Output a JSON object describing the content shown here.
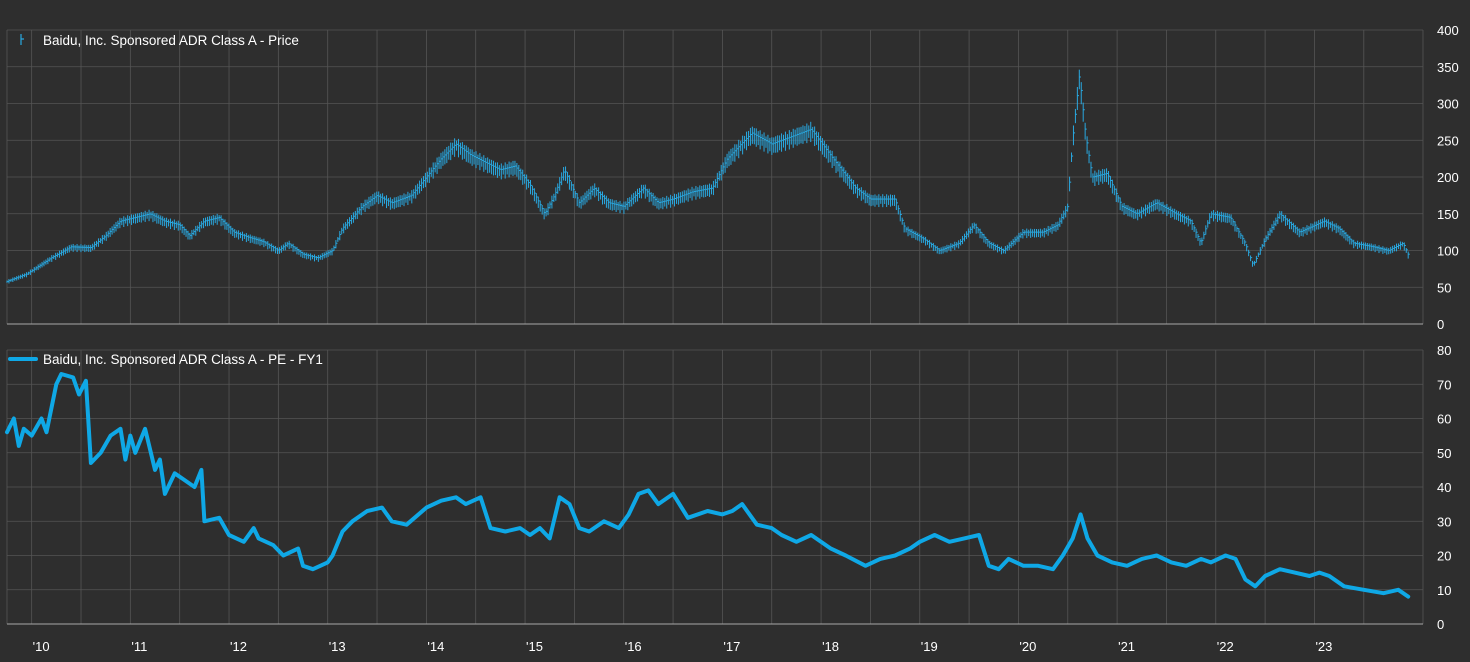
{
  "colors": {
    "background": "#2e2e2e",
    "grid": "#555555",
    "price": "#29a8e0",
    "pe": "#0fa8e6",
    "text": "#ffffff"
  },
  "chart_data": [
    {
      "type": "line",
      "style": "high-low bars",
      "legend": "Baidu, Inc. Sponsored ADR Class A - Price",
      "legend_icon": "price-bar-icon",
      "ylim": [
        0,
        400
      ],
      "yticks": [
        "0",
        "50",
        "100",
        "150",
        "200",
        "250",
        "300",
        "350",
        "400"
      ],
      "axis_side": "right",
      "grid": true,
      "series": [
        {
          "name": "Baidu, Inc. Sponsored ADR Class A - Price",
          "points": [
            [
              2009.75,
              58
            ],
            [
              2009.95,
              68
            ],
            [
              2010.2,
              90
            ],
            [
              2010.4,
              105
            ],
            [
              2010.6,
              104
            ],
            [
              2010.75,
              120
            ],
            [
              2010.9,
              140
            ],
            [
              2011.05,
              145
            ],
            [
              2011.2,
              150
            ],
            [
              2011.35,
              140
            ],
            [
              2011.5,
              135
            ],
            [
              2011.6,
              120
            ],
            [
              2011.75,
              140
            ],
            [
              2011.9,
              145
            ],
            [
              2012.05,
              125
            ],
            [
              2012.2,
              118
            ],
            [
              2012.35,
              112
            ],
            [
              2012.5,
              100
            ],
            [
              2012.6,
              110
            ],
            [
              2012.75,
              95
            ],
            [
              2012.9,
              90
            ],
            [
              2013.05,
              100
            ],
            [
              2013.15,
              130
            ],
            [
              2013.35,
              160
            ],
            [
              2013.5,
              175
            ],
            [
              2013.65,
              165
            ],
            [
              2013.85,
              175
            ],
            [
              2014.0,
              200
            ],
            [
              2014.15,
              225
            ],
            [
              2014.3,
              245
            ],
            [
              2014.45,
              230
            ],
            [
              2014.6,
              220
            ],
            [
              2014.75,
              210
            ],
            [
              2014.9,
              215
            ],
            [
              2015.05,
              190
            ],
            [
              2015.2,
              150
            ],
            [
              2015.3,
              175
            ],
            [
              2015.4,
              210
            ],
            [
              2015.55,
              165
            ],
            [
              2015.7,
              185
            ],
            [
              2015.85,
              165
            ],
            [
              2016.0,
              160
            ],
            [
              2016.2,
              185
            ],
            [
              2016.35,
              165
            ],
            [
              2016.5,
              170
            ],
            [
              2016.7,
              180
            ],
            [
              2016.9,
              185
            ],
            [
              2017.05,
              225
            ],
            [
              2017.3,
              260
            ],
            [
              2017.5,
              245
            ],
            [
              2017.7,
              255
            ],
            [
              2017.9,
              265
            ],
            [
              2018.15,
              220
            ],
            [
              2018.35,
              185
            ],
            [
              2018.5,
              170
            ],
            [
              2018.75,
              170
            ],
            [
              2018.85,
              130
            ],
            [
              2019.05,
              115
            ],
            [
              2019.2,
              100
            ],
            [
              2019.4,
              110
            ],
            [
              2019.55,
              135
            ],
            [
              2019.7,
              110
            ],
            [
              2019.85,
              100
            ],
            [
              2020.05,
              125
            ],
            [
              2020.25,
              125
            ],
            [
              2020.4,
              135
            ],
            [
              2020.5,
              160
            ],
            [
              2020.55,
              250
            ],
            [
              2020.62,
              340
            ],
            [
              2020.68,
              260
            ],
            [
              2020.75,
              200
            ],
            [
              2020.9,
              205
            ],
            [
              2021.05,
              160
            ],
            [
              2021.2,
              150
            ],
            [
              2021.4,
              165
            ],
            [
              2021.6,
              150
            ],
            [
              2021.75,
              140
            ],
            [
              2021.85,
              110
            ],
            [
              2021.95,
              150
            ],
            [
              2022.15,
              145
            ],
            [
              2022.3,
              110
            ],
            [
              2022.38,
              80
            ],
            [
              2022.5,
              115
            ],
            [
              2022.65,
              150
            ],
            [
              2022.85,
              125
            ],
            [
              2023.1,
              140
            ],
            [
              2023.25,
              130
            ],
            [
              2023.4,
              110
            ],
            [
              2023.6,
              105
            ],
            [
              2023.75,
              100
            ],
            [
              2023.9,
              110
            ],
            [
              2023.95,
              95
            ]
          ]
        }
      ]
    },
    {
      "type": "line",
      "legend": "Baidu, Inc. Sponsored ADR Class A - PE - FY1",
      "legend_icon": "pe-line-icon",
      "ylim": [
        0,
        80
      ],
      "yticks": [
        "0",
        "10",
        "20",
        "30",
        "40",
        "50",
        "60",
        "70",
        "80"
      ],
      "axis_side": "right",
      "grid": true,
      "series": [
        {
          "name": "Baidu, Inc. Sponsored ADR Class A - PE - FY1",
          "points": [
            [
              2009.75,
              56
            ],
            [
              2009.82,
              60
            ],
            [
              2009.87,
              52
            ],
            [
              2009.92,
              57
            ],
            [
              2010.0,
              55
            ],
            [
              2010.1,
              60
            ],
            [
              2010.15,
              56
            ],
            [
              2010.25,
              70
            ],
            [
              2010.3,
              73
            ],
            [
              2010.42,
              72
            ],
            [
              2010.48,
              67
            ],
            [
              2010.55,
              71
            ],
            [
              2010.6,
              47
            ],
            [
              2010.7,
              50
            ],
            [
              2010.8,
              55
            ],
            [
              2010.9,
              57
            ],
            [
              2010.95,
              48
            ],
            [
              2011.0,
              55
            ],
            [
              2011.05,
              50
            ],
            [
              2011.15,
              57
            ],
            [
              2011.25,
              45
            ],
            [
              2011.3,
              48
            ],
            [
              2011.35,
              38
            ],
            [
              2011.45,
              44
            ],
            [
              2011.55,
              42
            ],
            [
              2011.65,
              40
            ],
            [
              2011.72,
              45
            ],
            [
              2011.75,
              30
            ],
            [
              2011.9,
              31
            ],
            [
              2012.0,
              26
            ],
            [
              2012.15,
              24
            ],
            [
              2012.25,
              28
            ],
            [
              2012.3,
              25
            ],
            [
              2012.45,
              23
            ],
            [
              2012.55,
              20
            ],
            [
              2012.7,
              22
            ],
            [
              2012.75,
              17
            ],
            [
              2012.85,
              16
            ],
            [
              2013.0,
              18
            ],
            [
              2013.05,
              20
            ],
            [
              2013.15,
              27
            ],
            [
              2013.25,
              30
            ],
            [
              2013.4,
              33
            ],
            [
              2013.55,
              34
            ],
            [
              2013.65,
              30
            ],
            [
              2013.8,
              29
            ],
            [
              2014.0,
              34
            ],
            [
              2014.15,
              36
            ],
            [
              2014.3,
              37
            ],
            [
              2014.4,
              35
            ],
            [
              2014.55,
              37
            ],
            [
              2014.65,
              28
            ],
            [
              2014.8,
              27
            ],
            [
              2014.95,
              28
            ],
            [
              2015.05,
              26
            ],
            [
              2015.15,
              28
            ],
            [
              2015.25,
              25
            ],
            [
              2015.35,
              37
            ],
            [
              2015.45,
              35
            ],
            [
              2015.55,
              28
            ],
            [
              2015.65,
              27
            ],
            [
              2015.8,
              30
            ],
            [
              2015.95,
              28
            ],
            [
              2016.05,
              32
            ],
            [
              2016.15,
              38
            ],
            [
              2016.25,
              39
            ],
            [
              2016.35,
              35
            ],
            [
              2016.5,
              38
            ],
            [
              2016.65,
              31
            ],
            [
              2016.85,
              33
            ],
            [
              2017.0,
              32
            ],
            [
              2017.1,
              33
            ],
            [
              2017.2,
              35
            ],
            [
              2017.35,
              29
            ],
            [
              2017.5,
              28
            ],
            [
              2017.6,
              26
            ],
            [
              2017.75,
              24
            ],
            [
              2017.9,
              26
            ],
            [
              2018.1,
              22
            ],
            [
              2018.25,
              20
            ],
            [
              2018.45,
              17
            ],
            [
              2018.6,
              19
            ],
            [
              2018.75,
              20
            ],
            [
              2018.9,
              22
            ],
            [
              2019.0,
              24
            ],
            [
              2019.15,
              26
            ],
            [
              2019.3,
              24
            ],
            [
              2019.45,
              25
            ],
            [
              2019.6,
              26
            ],
            [
              2019.7,
              17
            ],
            [
              2019.8,
              16
            ],
            [
              2019.9,
              19
            ],
            [
              2020.05,
              17
            ],
            [
              2020.2,
              17
            ],
            [
              2020.35,
              16
            ],
            [
              2020.45,
              20
            ],
            [
              2020.55,
              25
            ],
            [
              2020.63,
              32
            ],
            [
              2020.7,
              25
            ],
            [
              2020.8,
              20
            ],
            [
              2020.95,
              18
            ],
            [
              2021.1,
              17
            ],
            [
              2021.25,
              19
            ],
            [
              2021.4,
              20
            ],
            [
              2021.55,
              18
            ],
            [
              2021.7,
              17
            ],
            [
              2021.85,
              19
            ],
            [
              2021.95,
              18
            ],
            [
              2022.1,
              20
            ],
            [
              2022.2,
              19
            ],
            [
              2022.3,
              13
            ],
            [
              2022.4,
              11
            ],
            [
              2022.5,
              14
            ],
            [
              2022.65,
              16
            ],
            [
              2022.8,
              15
            ],
            [
              2022.95,
              14
            ],
            [
              2023.05,
              15
            ],
            [
              2023.15,
              14
            ],
            [
              2023.3,
              11
            ],
            [
              2023.5,
              10
            ],
            [
              2023.7,
              9
            ],
            [
              2023.85,
              10
            ],
            [
              2023.95,
              8
            ]
          ]
        }
      ]
    }
  ],
  "x_axis": {
    "xlim": [
      2009.75,
      2024.1
    ],
    "ticks": [
      {
        "value": 2010.0,
        "label": "'10"
      },
      {
        "value": 2011.0,
        "label": "'11"
      },
      {
        "value": 2012.0,
        "label": "'12"
      },
      {
        "value": 2013.0,
        "label": "'13"
      },
      {
        "value": 2014.0,
        "label": "'14"
      },
      {
        "value": 2015.0,
        "label": "'15"
      },
      {
        "value": 2016.0,
        "label": "'16"
      },
      {
        "value": 2017.0,
        "label": "'17"
      },
      {
        "value": 2018.0,
        "label": "'18"
      },
      {
        "value": 2019.0,
        "label": "'19"
      },
      {
        "value": 2020.0,
        "label": "'20"
      },
      {
        "value": 2021.0,
        "label": "'21"
      },
      {
        "value": 2022.0,
        "label": "'22"
      },
      {
        "value": 2023.0,
        "label": "'23"
      }
    ],
    "gridlines": [
      2010.5,
      2011.5,
      2012.5,
      2013.5,
      2014.5,
      2015.5,
      2016.5,
      2017.5,
      2018.5,
      2019.5,
      2020.5,
      2021.5,
      2022.5,
      2023.5
    ]
  }
}
